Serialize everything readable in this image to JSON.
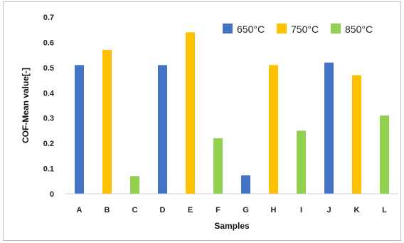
{
  "chart_data": {
    "type": "bar",
    "title": "",
    "xlabel": "Samples",
    "ylabel": "COF-Mean value[-]",
    "ylim": [
      0,
      0.7
    ],
    "yticks": [
      "0",
      "0.1",
      "0.2",
      "0.3",
      "0.4",
      "0.5",
      "0.6",
      "0.7"
    ],
    "grid": false,
    "legend_placement": "top-right",
    "colors": {
      "650": "#4472c4",
      "750": "#ffc000",
      "850": "#92d050"
    },
    "series_names": [
      "650°C",
      "750°C",
      "850°C"
    ],
    "categories": [
      "A",
      "B",
      "C",
      "D",
      "E",
      "F",
      "G",
      "H",
      "I",
      "J",
      "K",
      "L"
    ],
    "bars": [
      {
        "category": "A",
        "value": 0.51,
        "series": "650°C",
        "color": "#4472c4"
      },
      {
        "category": "B",
        "value": 0.57,
        "series": "750°C",
        "color": "#ffc000"
      },
      {
        "category": "C",
        "value": 0.07,
        "series": "850°C",
        "color": "#92d050"
      },
      {
        "category": "D",
        "value": 0.51,
        "series": "650°C",
        "color": "#4472c4"
      },
      {
        "category": "E",
        "value": 0.64,
        "series": "750°C",
        "color": "#ffc000"
      },
      {
        "category": "F",
        "value": 0.22,
        "series": "850°C",
        "color": "#92d050"
      },
      {
        "category": "G",
        "value": 0.073,
        "series": "650°C",
        "color": "#4472c4"
      },
      {
        "category": "H",
        "value": 0.51,
        "series": "750°C",
        "color": "#ffc000"
      },
      {
        "category": "I",
        "value": 0.25,
        "series": "850°C",
        "color": "#92d050"
      },
      {
        "category": "J",
        "value": 0.52,
        "series": "650°C",
        "color": "#4472c4"
      },
      {
        "category": "K",
        "value": 0.47,
        "series": "750°C",
        "color": "#ffc000"
      },
      {
        "category": "L",
        "value": 0.31,
        "series": "850°C",
        "color": "#92d050"
      }
    ]
  }
}
